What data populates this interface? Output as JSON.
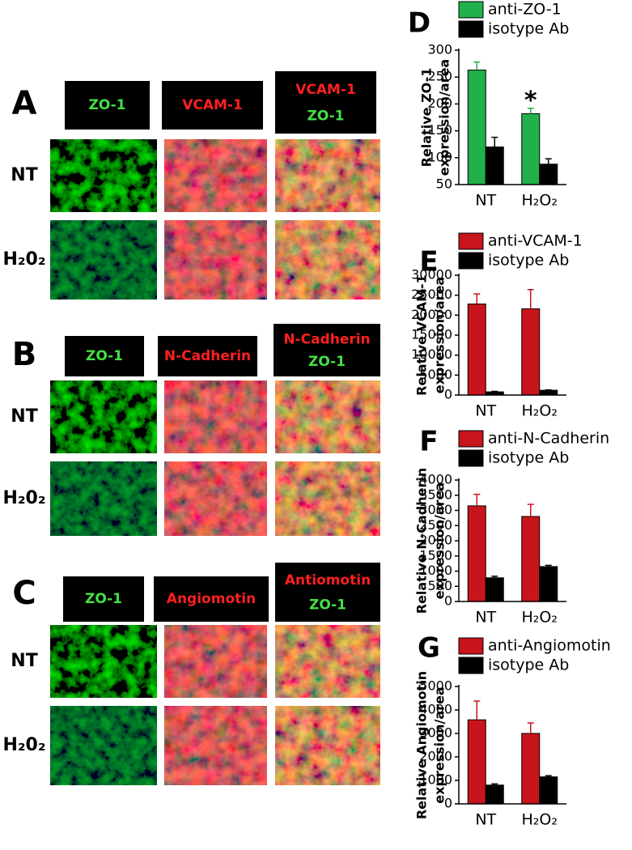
{
  "panels": [
    {
      "letter": "A",
      "headers": [
        [
          "ZO-1"
        ],
        [
          "VCAM-1"
        ],
        [
          "VCAM-1",
          "ZO-1"
        ]
      ],
      "rows": [
        "NT",
        "H₂0₂"
      ]
    },
    {
      "letter": "B",
      "headers": [
        [
          "ZO-1"
        ],
        [
          "N-Cadherin"
        ],
        [
          "N-Cadherin",
          "ZO-1"
        ]
      ],
      "rows": [
        "NT",
        "H₂0₂"
      ]
    },
    {
      "letter": "C",
      "headers": [
        [
          "ZO-1"
        ],
        [
          "Angiomotin"
        ],
        [
          "Antiomotin",
          "ZO-1"
        ]
      ],
      "rows": [
        "NT",
        "H₂0₂"
      ]
    }
  ],
  "chart_data": [
    {
      "type": "bar",
      "panel_label": "D",
      "ylabel": [
        "Relative ZO-1",
        "expression/area"
      ],
      "categories": [
        "NT",
        "H₂O₂"
      ],
      "series": [
        {
          "name": "anti-ZO-1",
          "color": "#22b04a",
          "values": [
            263,
            182
          ],
          "errors": [
            15,
            10
          ]
        },
        {
          "name": "isotype Ab",
          "color": "#000000",
          "values": [
            120,
            88
          ],
          "errors": [
            18,
            10
          ]
        }
      ],
      "annotation": "*",
      "ylim": [
        50,
        300
      ],
      "yticks": [
        50,
        100,
        150,
        200,
        250,
        300
      ]
    },
    {
      "type": "bar",
      "panel_label": "E",
      "ylabel": [
        "Relative VCAM-1",
        "expression/area"
      ],
      "categories": [
        "NT",
        "H₂O₂"
      ],
      "series": [
        {
          "name": "anti-VCAM-1",
          "color": "#c8141c",
          "values": [
            22800,
            21600
          ],
          "errors": [
            2500,
            4800
          ]
        },
        {
          "name": "isotype Ab",
          "color": "#000000",
          "values": [
            800,
            1200
          ],
          "errors": [
            100,
            100
          ]
        }
      ],
      "ylim": [
        0,
        30000
      ],
      "yticks": [
        0,
        5000,
        10000,
        15000,
        20000,
        25000,
        30000
      ]
    },
    {
      "type": "bar",
      "panel_label": "F",
      "ylabel": [
        "Relative N-Cadherin",
        "expression/area"
      ],
      "categories": [
        "NT",
        "H₂O₂"
      ],
      "series": [
        {
          "name": "anti-N-Cadherin",
          "color": "#c8141c",
          "values": [
            3150,
            2800
          ],
          "errors": [
            380,
            400
          ]
        },
        {
          "name": "isotype Ab",
          "color": "#000000",
          "values": [
            780,
            1150
          ],
          "errors": [
            50,
            40
          ]
        }
      ],
      "ylim": [
        0,
        4000
      ],
      "yticks": [
        0,
        500,
        1000,
        1500,
        2000,
        2500,
        3000,
        3500,
        4000
      ]
    },
    {
      "type": "bar",
      "panel_label": "G",
      "ylabel": [
        "Relative Angiomotin",
        "expression/area"
      ],
      "categories": [
        "NT",
        "H₂O₂"
      ],
      "series": [
        {
          "name": "anti-Angiomotin",
          "color": "#c8141c",
          "values": [
            3580,
            3000
          ],
          "errors": [
            800,
            450
          ]
        },
        {
          "name": "isotype Ab",
          "color": "#000000",
          "values": [
            800,
            1150
          ],
          "errors": [
            50,
            50
          ]
        }
      ],
      "ylim": [
        0,
        5000
      ],
      "yticks": [
        0,
        1000,
        2000,
        3000,
        4000,
        5000
      ]
    }
  ]
}
